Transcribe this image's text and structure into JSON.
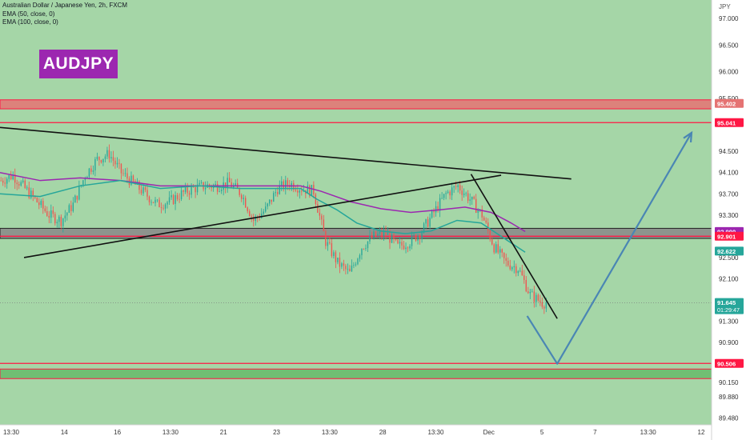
{
  "legend": {
    "title": "Australian Dollar / Japanese Yen, 2h, FXCM",
    "ema50": "EMA (50, close, 0)",
    "ema100": "EMA (100, close, 0)"
  },
  "badge": "AUDJPY",
  "currency_unit": "JPY",
  "colors": {
    "bull": "#26a69a",
    "bear": "#ef5350",
    "ema50": "#26a69a",
    "ema100": "#9c27b0",
    "plot_bg": "#a5d6a7",
    "resistance_zone": "#e57373",
    "mid_zone": "#888888",
    "support_zone": "#66bb6a",
    "projection": "#4a86b4",
    "hline": "#ff1744"
  },
  "chart_data": {
    "type": "candlestick",
    "symbol": "AUDJPY",
    "timeframe": "2h",
    "ylim": [
      89.35,
      97.35
    ],
    "y_ticks": [
      "97.000",
      "96.500",
      "96.000",
      "95.500",
      "94.500",
      "94.100",
      "93.700",
      "93.300",
      "92.500",
      "92.100",
      "91.300",
      "90.900",
      "90.150",
      "89.880",
      "89.480"
    ],
    "x_ticks": [
      "13:30",
      "14",
      "16",
      "13:30",
      "21",
      "23",
      "13:30",
      "28",
      "13:30",
      "Dec",
      "5",
      "7",
      "13:30",
      "12"
    ],
    "price_labels": [
      {
        "value": 95.402,
        "text": "95.402",
        "style": "zone"
      },
      {
        "value": 95.041,
        "text": "95.041",
        "style": "line"
      },
      {
        "value": 92.99,
        "text": "92.990",
        "style": "ema100"
      },
      {
        "value": 92.901,
        "text": "92.901",
        "style": "line"
      },
      {
        "value": 92.622,
        "text": "92.622",
        "style": "ema50"
      },
      {
        "value": 91.645,
        "text": "91.645",
        "countdown": "01:29:47",
        "style": "last"
      },
      {
        "value": 90.506,
        "text": "90.506",
        "style": "line"
      }
    ],
    "zones": [
      {
        "from": 95.3,
        "to": 95.47,
        "name": "resistance"
      },
      {
        "from": 92.86,
        "to": 93.05,
        "name": "mid"
      },
      {
        "from": 90.22,
        "to": 90.4,
        "name": "support"
      }
    ],
    "horizontal_lines": [
      95.041,
      92.901,
      90.506
    ],
    "last_price": 91.645,
    "drift_path": [
      [
        0,
        93.95
      ],
      [
        6,
        94.05
      ],
      [
        12,
        93.8
      ],
      [
        18,
        93.55
      ],
      [
        24,
        93.3
      ],
      [
        30,
        93.2
      ],
      [
        36,
        93.5
      ],
      [
        42,
        94.05
      ],
      [
        48,
        94.35
      ],
      [
        54,
        94.45
      ],
      [
        60,
        94.1
      ],
      [
        66,
        93.9
      ],
      [
        72,
        93.7
      ],
      [
        78,
        93.5
      ],
      [
        84,
        93.55
      ],
      [
        90,
        93.7
      ],
      [
        96,
        93.8
      ],
      [
        102,
        93.85
      ],
      [
        108,
        93.85
      ],
      [
        114,
        93.9
      ],
      [
        120,
        93.7
      ],
      [
        126,
        93.2
      ],
      [
        132,
        93.4
      ],
      [
        138,
        93.8
      ],
      [
        144,
        93.9
      ],
      [
        150,
        93.8
      ],
      [
        156,
        93.75
      ],
      [
        162,
        92.8
      ],
      [
        168,
        92.4
      ],
      [
        174,
        92.2
      ],
      [
        180,
        92.7
      ],
      [
        186,
        92.9
      ],
      [
        192,
        92.95
      ],
      [
        198,
        92.7
      ],
      [
        204,
        92.8
      ],
      [
        210,
        93.0
      ],
      [
        216,
        93.35
      ],
      [
        222,
        93.7
      ],
      [
        228,
        93.85
      ],
      [
        234,
        93.6
      ],
      [
        240,
        93.3
      ],
      [
        246,
        92.7
      ],
      [
        252,
        92.4
      ],
      [
        258,
        92.3
      ],
      [
        264,
        91.8
      ],
      [
        270,
        91.65
      ],
      [
        272,
        91.645
      ]
    ],
    "ema50_path": [
      [
        0,
        93.7
      ],
      [
        20,
        93.65
      ],
      [
        40,
        93.85
      ],
      [
        60,
        93.95
      ],
      [
        80,
        93.8
      ],
      [
        100,
        93.85
      ],
      [
        120,
        93.8
      ],
      [
        140,
        93.8
      ],
      [
        150,
        93.8
      ],
      [
        158,
        93.6
      ],
      [
        168,
        93.4
      ],
      [
        178,
        93.15
      ],
      [
        190,
        93.0
      ],
      [
        202,
        92.95
      ],
      [
        215,
        93.0
      ],
      [
        228,
        93.2
      ],
      [
        240,
        93.15
      ],
      [
        252,
        92.85
      ],
      [
        262,
        92.6
      ]
    ],
    "ema100_path": [
      [
        0,
        94.1
      ],
      [
        20,
        93.95
      ],
      [
        40,
        94.0
      ],
      [
        60,
        93.95
      ],
      [
        80,
        93.85
      ],
      [
        100,
        93.85
      ],
      [
        120,
        93.85
      ],
      [
        140,
        93.85
      ],
      [
        150,
        93.85
      ],
      [
        160,
        93.75
      ],
      [
        175,
        93.55
      ],
      [
        190,
        93.42
      ],
      [
        205,
        93.35
      ],
      [
        220,
        93.4
      ],
      [
        232,
        93.45
      ],
      [
        245,
        93.35
      ],
      [
        255,
        93.15
      ],
      [
        262,
        92.99
      ]
    ],
    "trendlines": [
      {
        "name": "upper-descending",
        "from": [
          0,
          94.95
        ],
        "to": [
          285,
          93.98
        ]
      },
      {
        "name": "lower-ascending",
        "from": [
          12,
          92.5
        ],
        "to": [
          250,
          94.05
        ]
      },
      {
        "name": "channel-descending",
        "from": [
          235,
          94.07
        ],
        "to": [
          278,
          91.35
        ]
      }
    ],
    "projection_path": [
      [
        263,
        91.4
      ],
      [
        278,
        90.5
      ],
      [
        345,
        94.85
      ]
    ]
  }
}
